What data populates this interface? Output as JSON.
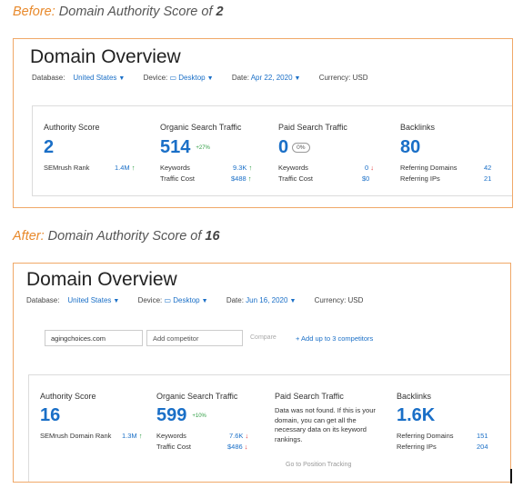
{
  "before": {
    "caption_prefix": "Before:",
    "caption_text": " Domain Authority Score of ",
    "caption_score": "2",
    "title": "Domain Overview",
    "filters": {
      "database_label": "Database:",
      "database_value": "United States",
      "device_label": "Device:",
      "device_value": "Desktop",
      "date_label": "Date:",
      "date_value": "Apr 22, 2020",
      "currency": "Currency: USD"
    },
    "authority": {
      "label": "Authority Score",
      "value": "2",
      "rank_label": "SEMrush Rank",
      "rank_value": "1.4M",
      "rank_trend": "↑"
    },
    "organic": {
      "label": "Organic Search Traffic",
      "value": "514",
      "delta": "+27%",
      "keywords_label": "Keywords",
      "keywords_value": "9.3K",
      "keywords_trend": "↑",
      "cost_label": "Traffic Cost",
      "cost_value": "$488",
      "cost_trend": "↑"
    },
    "paid": {
      "label": "Paid Search Traffic",
      "value": "0",
      "pill": "0%",
      "keywords_label": "Keywords",
      "keywords_value": "0",
      "keywords_trend": "↓",
      "cost_label": "Traffic Cost",
      "cost_value": "$0"
    },
    "backlinks": {
      "label": "Backlinks",
      "value": "80",
      "ref_domains_label": "Referring Domains",
      "ref_domains_value": "42",
      "ref_ips_label": "Referring IPs",
      "ref_ips_value": "21"
    }
  },
  "after": {
    "caption_prefix": "After:",
    "caption_text": " Domain Authority Score of ",
    "caption_score": "16",
    "title": "Domain Overview",
    "filters": {
      "database_label": "Database:",
      "database_value": "United States",
      "device_label": "Device:",
      "device_value": "Desktop",
      "date_label": "Date:",
      "date_value": "Jun 16, 2020",
      "currency": "Currency: USD"
    },
    "domain_input": "agingchoices.com",
    "add_competitor_placeholder": "Add competitor",
    "compare_label": "Compare",
    "add_up_to": "+ Add up to 3 competitors",
    "authority": {
      "label": "Authority Score",
      "value": "16",
      "rank_label": "SEMrush Domain Rank",
      "rank_value": "1.3M",
      "rank_trend": "↑"
    },
    "organic": {
      "label": "Organic Search Traffic",
      "value": "599",
      "delta": "+10%",
      "keywords_label": "Keywords",
      "keywords_value": "7.6K",
      "keywords_trend": "↓",
      "cost_label": "Traffic Cost",
      "cost_value": "$486",
      "cost_trend": "↓"
    },
    "paid": {
      "label": "Paid Search Traffic",
      "message": "Data was not found. If this is your domain, you can get all the necessary data on its keyword rankings.",
      "link": "Go to Position Tracking"
    },
    "backlinks": {
      "label": "Backlinks",
      "value": "1.6K",
      "ref_domains_label": "Referring Domains",
      "ref_domains_value": "151",
      "ref_ips_label": "Referring IPs",
      "ref_ips_value": "204"
    }
  }
}
